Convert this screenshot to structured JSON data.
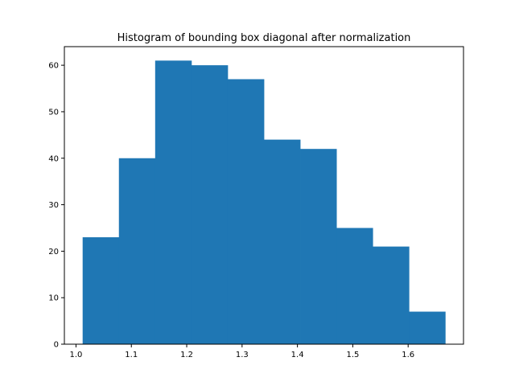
{
  "chart_data": {
    "type": "bar",
    "title": "Histogram of bounding box diagonal after normalization",
    "xlabel": "",
    "ylabel": "",
    "bin_edges": [
      1.012,
      1.0775,
      1.143,
      1.2085,
      1.274,
      1.3395,
      1.405,
      1.4705,
      1.536,
      1.6015,
      1.667
    ],
    "values": [
      23,
      40,
      61,
      60,
      57,
      44,
      42,
      25,
      21,
      7
    ],
    "xlim": [
      0.979,
      1.7
    ],
    "ylim": [
      0,
      64
    ],
    "xticks": [
      1.0,
      1.1,
      1.2,
      1.3,
      1.4,
      1.5,
      1.6
    ],
    "xtick_labels": [
      "1.0",
      "1.1",
      "1.2",
      "1.3",
      "1.4",
      "1.5",
      "1.6"
    ],
    "yticks": [
      0,
      10,
      20,
      30,
      40,
      50,
      60
    ],
    "ytick_labels": [
      "0",
      "10",
      "20",
      "30",
      "40",
      "50",
      "60"
    ],
    "bar_color": "#1f77b4",
    "grid": false
  }
}
